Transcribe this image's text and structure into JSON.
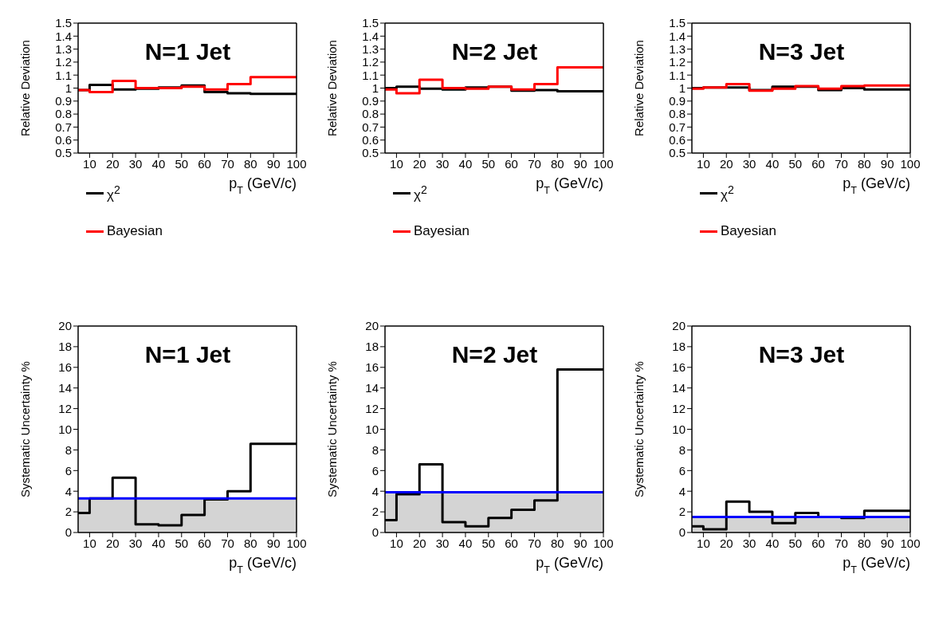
{
  "chart_data": [
    {
      "type": "histogram",
      "title": "N=1 Jet",
      "xlabel": "p$_{T}$ (GeV/c)",
      "ylabel": "Relative Deviation",
      "bins": [
        5,
        10,
        20,
        30,
        40,
        50,
        60,
        70,
        80,
        100
      ],
      "xlim": [
        5,
        100
      ],
      "xticks": [
        10,
        20,
        30,
        40,
        50,
        60,
        70,
        80,
        90,
        100
      ],
      "ylim": [
        0.5,
        1.5
      ],
      "yticks": [
        0.5,
        0.6,
        0.7,
        0.8,
        0.9,
        1,
        1.1,
        1.2,
        1.3,
        1.4,
        1.5
      ],
      "legend": "left",
      "series": [
        {
          "name": "χ$^{2}$",
          "color": "#000000",
          "values": [
            0.985,
            1.025,
            0.99,
            0.995,
            1.005,
            1.02,
            0.97,
            0.96,
            0.955
          ]
        },
        {
          "name": "Bayesian",
          "color": "#ff0000",
          "values": [
            0.985,
            0.97,
            1.055,
            1.0,
            1.0,
            1.01,
            0.99,
            1.03,
            1.085
          ]
        }
      ]
    },
    {
      "type": "histogram",
      "title": "N=2 Jet",
      "xlabel": "p$_{T}$ (GeV/c)",
      "ylabel": "Relative Deviation",
      "bins": [
        5,
        10,
        20,
        30,
        40,
        50,
        60,
        70,
        80,
        100
      ],
      "xlim": [
        5,
        100
      ],
      "xticks": [
        10,
        20,
        30,
        40,
        50,
        60,
        70,
        80,
        90,
        100
      ],
      "ylim": [
        0.5,
        1.5
      ],
      "yticks": [
        0.5,
        0.6,
        0.7,
        0.8,
        0.9,
        1,
        1.1,
        1.2,
        1.3,
        1.4,
        1.5
      ],
      "legend": "left",
      "series": [
        {
          "name": "χ$^{2}$",
          "color": "#000000",
          "values": [
            1.0,
            1.01,
            0.995,
            0.99,
            1.005,
            1.01,
            0.98,
            0.985,
            0.975
          ]
        },
        {
          "name": "Bayesian",
          "color": "#ff0000",
          "values": [
            0.99,
            0.96,
            1.065,
            1.0,
            0.995,
            1.01,
            0.99,
            1.03,
            1.16
          ]
        }
      ]
    },
    {
      "type": "histogram",
      "title": "N=3 Jet",
      "xlabel": "p$_{T}$ (GeV/c)",
      "ylabel": "Relative Deviation",
      "bins": [
        5,
        10,
        20,
        30,
        40,
        50,
        60,
        70,
        80,
        100
      ],
      "xlim": [
        5,
        100
      ],
      "xticks": [
        10,
        20,
        30,
        40,
        50,
        60,
        70,
        80,
        90,
        100
      ],
      "ylim": [
        0.5,
        1.5
      ],
      "yticks": [
        0.5,
        0.6,
        0.7,
        0.8,
        0.9,
        1,
        1.1,
        1.2,
        1.3,
        1.4,
        1.5
      ],
      "legend": "left",
      "series": [
        {
          "name": "χ$^{2}$",
          "color": "#000000",
          "values": [
            1.0,
            1.005,
            1.005,
            0.985,
            1.01,
            1.01,
            0.985,
            1.0,
            0.99
          ]
        },
        {
          "name": "Bayesian",
          "color": "#ff0000",
          "values": [
            0.995,
            1.005,
            1.03,
            0.98,
            0.995,
            1.015,
            0.995,
            1.015,
            1.02
          ]
        }
      ]
    },
    {
      "type": "histogram",
      "title": "N=1 Jet",
      "xlabel": "p$_{T}$ (GeV/c)",
      "ylabel": "Systematic Uncertainty %",
      "bins": [
        5,
        10,
        20,
        30,
        40,
        50,
        60,
        70,
        80,
        100
      ],
      "xlim": [
        5,
        100
      ],
      "xticks": [
        10,
        20,
        30,
        40,
        50,
        60,
        70,
        80,
        90,
        100
      ],
      "ylim": [
        0,
        20
      ],
      "yticks": [
        0,
        2,
        4,
        6,
        8,
        10,
        12,
        14,
        16,
        18,
        20
      ],
      "series": [
        {
          "color": "#000000",
          "values": [
            1.9,
            3.3,
            5.3,
            0.8,
            0.7,
            1.7,
            3.2,
            4.0,
            8.6
          ]
        }
      ],
      "bands": [
        {
          "axis": "y",
          "from": 0,
          "to": 3.3,
          "color": "#d4d4d4"
        }
      ],
      "ref_lines": [
        {
          "axis": "y",
          "value": 3.3,
          "color": "#0000ff"
        }
      ]
    },
    {
      "type": "histogram",
      "title": "N=2 Jet",
      "xlabel": "p$_{T}$ (GeV/c)",
      "ylabel": "Systematic Uncertainty %",
      "bins": [
        5,
        10,
        20,
        30,
        40,
        50,
        60,
        70,
        80,
        100
      ],
      "xlim": [
        5,
        100
      ],
      "xticks": [
        10,
        20,
        30,
        40,
        50,
        60,
        70,
        80,
        90,
        100
      ],
      "ylim": [
        0,
        20
      ],
      "yticks": [
        0,
        2,
        4,
        6,
        8,
        10,
        12,
        14,
        16,
        18,
        20
      ],
      "series": [
        {
          "color": "#000000",
          "values": [
            1.2,
            3.7,
            6.6,
            1.0,
            0.6,
            1.4,
            2.2,
            3.1,
            15.8
          ]
        }
      ],
      "bands": [
        {
          "axis": "y",
          "from": 0,
          "to": 3.9,
          "color": "#d4d4d4"
        }
      ],
      "ref_lines": [
        {
          "axis": "y",
          "value": 3.9,
          "color": "#0000ff"
        }
      ]
    },
    {
      "type": "histogram",
      "title": "N=3 Jet",
      "xlabel": "p$_{T}$ (GeV/c)",
      "ylabel": "Systematic Uncertainty %",
      "bins": [
        5,
        10,
        20,
        30,
        40,
        50,
        60,
        70,
        80,
        100
      ],
      "xlim": [
        5,
        100
      ],
      "xticks": [
        10,
        20,
        30,
        40,
        50,
        60,
        70,
        80,
        90,
        100
      ],
      "ylim": [
        0,
        20
      ],
      "yticks": [
        0,
        2,
        4,
        6,
        8,
        10,
        12,
        14,
        16,
        18,
        20
      ],
      "series": [
        {
          "color": "#000000",
          "values": [
            0.6,
            0.3,
            3.0,
            2.0,
            0.9,
            1.9,
            1.5,
            1.4,
            2.1
          ]
        }
      ],
      "bands": [
        {
          "axis": "y",
          "from": 0,
          "to": 1.5,
          "color": "#d4d4d4"
        }
      ],
      "ref_lines": [
        {
          "axis": "y",
          "value": 1.5,
          "color": "#0000ff"
        }
      ]
    }
  ]
}
